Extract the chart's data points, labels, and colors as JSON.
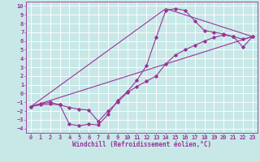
{
  "bg_color": "#c8e8e8",
  "grid_color": "#ffffff",
  "line_color": "#993399",
  "marker_color": "#993399",
  "xlabel": "Windchill (Refroidissement éolien,°C)",
  "xlabel_fontsize": 5.5,
  "tick_fontsize": 5,
  "xlim": [
    -0.5,
    23.5
  ],
  "ylim": [
    -4.5,
    10.5
  ],
  "xticks": [
    0,
    1,
    2,
    3,
    4,
    5,
    6,
    7,
    8,
    9,
    10,
    11,
    12,
    13,
    14,
    15,
    16,
    17,
    18,
    19,
    20,
    21,
    22,
    23
  ],
  "yticks": [
    -4,
    -3,
    -2,
    -1,
    0,
    1,
    2,
    3,
    4,
    5,
    6,
    7,
    8,
    9,
    10
  ],
  "curve1_x": [
    0,
    1,
    2,
    3,
    4,
    5,
    6,
    7,
    8,
    9,
    10,
    11,
    12,
    13,
    14,
    15,
    16,
    17,
    18,
    19,
    20,
    21,
    22,
    23
  ],
  "curve1_y": [
    -1.5,
    -1.3,
    -1.2,
    -1.3,
    -3.5,
    -3.7,
    -3.5,
    -3.6,
    -2.4,
    -0.8,
    0.2,
    1.5,
    3.2,
    6.4,
    9.5,
    9.7,
    9.5,
    8.3,
    7.2,
    7.0,
    6.8,
    6.5,
    5.3,
    6.5
  ],
  "curve2_x": [
    0,
    1,
    2,
    3,
    4,
    5,
    6,
    7,
    8,
    9,
    10,
    11,
    12,
    13,
    14,
    15,
    16,
    17,
    18,
    19,
    20,
    21,
    22,
    23
  ],
  "curve2_y": [
    -1.5,
    -1.2,
    -1.0,
    -1.3,
    -1.6,
    -1.8,
    -1.9,
    -3.2,
    -2.0,
    -1.0,
    0.1,
    0.8,
    1.4,
    2.0,
    3.4,
    4.4,
    5.0,
    5.5,
    6.0,
    6.4,
    6.7,
    6.5,
    6.2,
    6.5
  ],
  "curve3_x": [
    0,
    23
  ],
  "curve3_y": [
    -1.5,
    6.5
  ],
  "curve4_x": [
    0,
    14,
    23
  ],
  "curve4_y": [
    -1.5,
    9.7,
    6.5
  ]
}
